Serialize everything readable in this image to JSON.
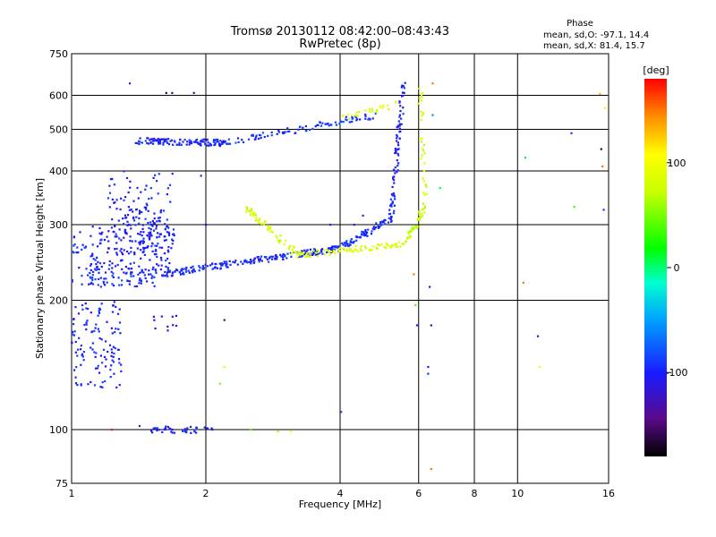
{
  "header": {
    "title": "Tromsø 20130112 08:42:00–08:43:43",
    "subtitle": "RwPretec (8p)",
    "phase_title": "Phase",
    "phase_o": "mean, sd,O: -97.1, 14.4",
    "phase_x": "mean, sd,X: 81.4, 15.7"
  },
  "colorbar": {
    "unit": "[deg]",
    "ticks": [
      "100",
      "0",
      "-100"
    ],
    "range": [
      -180,
      180
    ]
  },
  "chart_data": {
    "type": "scatter",
    "xlabel": "Frequency [MHz]",
    "ylabel": "Stationary phase Virtual Height [km]",
    "x_scale": "log",
    "y_scale": "log",
    "xlim": [
      1,
      16
    ],
    "ylim": [
      75,
      750
    ],
    "x_ticks": [
      "1",
      "2",
      "4",
      "6",
      "8",
      "10",
      "16"
    ],
    "y_ticks": [
      "75",
      "100",
      "200",
      "300",
      "400",
      "500",
      "600",
      "750"
    ],
    "grid": true,
    "series": [
      {
        "kind": "clusters",
        "points": [
          {
            "x": 1.0,
            "y": 215,
            "x2": 1.55,
            "y2": 240,
            "phase": -95,
            "count": 90
          },
          {
            "x": 1.1,
            "y": 235,
            "x2": 1.7,
            "y2": 300,
            "phase": -100,
            "count": 150
          },
          {
            "x": 1.2,
            "y": 280,
            "x2": 1.7,
            "y2": 400,
            "phase": -98,
            "count": 70
          },
          {
            "x": 1.0,
            "y": 125,
            "x2": 1.3,
            "y2": 200,
            "phase": -97,
            "count": 120
          },
          {
            "x": 1.3,
            "y": 255,
            "x2": 1.65,
            "y2": 330,
            "phase": -102,
            "count": 70
          },
          {
            "x": 1.0,
            "y": 255,
            "x2": 1.08,
            "y2": 290,
            "phase": -95,
            "count": 15
          },
          {
            "x": 1.5,
            "y": 170,
            "x2": 1.75,
            "y2": 185,
            "phase": -110,
            "count": 10
          }
        ]
      },
      {
        "kind": "traces",
        "points": [
          {
            "x": 1.6,
            "y": 230,
            "x2": 4.0,
            "y2": 265,
            "phase": -97,
            "count": 220
          },
          {
            "x": 4.0,
            "y": 265,
            "x2": 5.2,
            "y2": 310,
            "phase": -95,
            "count": 70
          },
          {
            "x": 5.2,
            "y": 310,
            "x2": 5.55,
            "y2": 640,
            "phase": -100,
            "count": 90
          },
          {
            "x": 1.4,
            "y": 470,
            "x2": 2.2,
            "y2": 465,
            "phase": -98,
            "count": 120
          },
          {
            "x": 2.2,
            "y": 465,
            "x2": 4.8,
            "y2": 540,
            "phase": -90,
            "count": 90
          },
          {
            "x": 4.0,
            "y": 530,
            "x2": 5.4,
            "y2": 575,
            "phase": 85,
            "count": 25
          },
          {
            "x": 2.45,
            "y": 330,
            "x2": 3.2,
            "y2": 255,
            "phase": 80,
            "count": 60
          },
          {
            "x": 3.2,
            "y": 255,
            "x2": 5.6,
            "y2": 270,
            "phase": 82,
            "count": 90
          },
          {
            "x": 5.6,
            "y": 270,
            "x2": 6.2,
            "y2": 330,
            "phase": 75,
            "count": 40
          },
          {
            "x": 6.2,
            "y": 330,
            "x2": 6.05,
            "y2": 620,
            "phase": 78,
            "count": 30
          },
          {
            "x": 1.5,
            "y": 100,
            "x2": 2.05,
            "y2": 100,
            "phase": -98,
            "count": 40
          }
        ]
      },
      {
        "kind": "points",
        "points": [
          {
            "x": 1.35,
            "y": 640,
            "phase": -95
          },
          {
            "x": 1.63,
            "y": 608,
            "phase": -160
          },
          {
            "x": 1.68,
            "y": 608,
            "phase": -150
          },
          {
            "x": 1.88,
            "y": 608,
            "phase": -150
          },
          {
            "x": 1.23,
            "y": 100,
            "phase": 175
          },
          {
            "x": 1.42,
            "y": 102,
            "phase": -110
          },
          {
            "x": 2.52,
            "y": 100,
            "phase": 40
          },
          {
            "x": 2.9,
            "y": 99,
            "phase": 60
          },
          {
            "x": 3.1,
            "y": 99,
            "phase": 95
          },
          {
            "x": 4.02,
            "y": 110,
            "phase": -90
          },
          {
            "x": 6.4,
            "y": 81,
            "phase": 150
          },
          {
            "x": 6.45,
            "y": 640,
            "phase": 150
          },
          {
            "x": 6.45,
            "y": 540,
            "phase": -60
          },
          {
            "x": 6.7,
            "y": 365,
            "phase": 5
          },
          {
            "x": 6.35,
            "y": 215,
            "phase": -100
          },
          {
            "x": 6.3,
            "y": 140,
            "phase": -110
          },
          {
            "x": 6.3,
            "y": 135,
            "phase": -90
          },
          {
            "x": 6.4,
            "y": 175,
            "phase": -150
          },
          {
            "x": 5.95,
            "y": 175,
            "phase": -100
          },
          {
            "x": 5.9,
            "y": 195,
            "phase": 40
          },
          {
            "x": 5.85,
            "y": 230,
            "phase": 150
          },
          {
            "x": 2.2,
            "y": 180,
            "phase": -150
          },
          {
            "x": 2.2,
            "y": 140,
            "phase": 90
          },
          {
            "x": 2.15,
            "y": 128,
            "phase": 50
          },
          {
            "x": 10.3,
            "y": 220,
            "phase": 150
          },
          {
            "x": 11.1,
            "y": 165,
            "phase": -100
          },
          {
            "x": 11.2,
            "y": 140,
            "phase": 100
          },
          {
            "x": 10.4,
            "y": 430,
            "phase": 10
          },
          {
            "x": 13.4,
            "y": 330,
            "phase": 30
          },
          {
            "x": 13.2,
            "y": 490,
            "phase": -90
          },
          {
            "x": 15.3,
            "y": 605,
            "phase": 130
          },
          {
            "x": 15.4,
            "y": 450,
            "phase": -160
          },
          {
            "x": 15.5,
            "y": 410,
            "phase": 150
          },
          {
            "x": 15.6,
            "y": 325,
            "phase": -90
          },
          {
            "x": 15.7,
            "y": 560,
            "phase": 110
          },
          {
            "x": 1.95,
            "y": 390,
            "phase": -100
          },
          {
            "x": 2.0,
            "y": 300,
            "phase": -105
          },
          {
            "x": 4.3,
            "y": 300,
            "phase": -100
          },
          {
            "x": 4.5,
            "y": 315,
            "phase": -95
          },
          {
            "x": 3.8,
            "y": 300,
            "phase": -98
          }
        ]
      }
    ]
  }
}
